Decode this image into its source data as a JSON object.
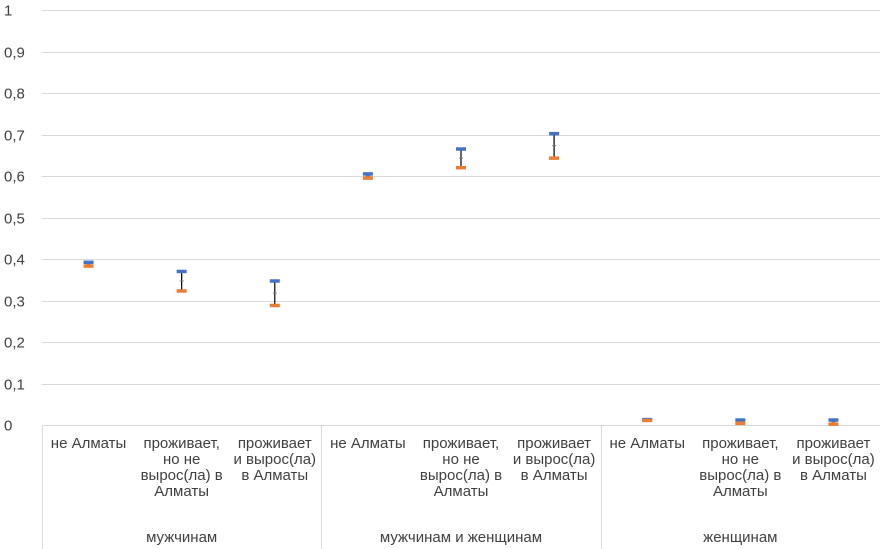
{
  "chart_data": {
    "type": "scatter",
    "style": "high-low-range",
    "title": "",
    "xlabel": "",
    "ylabel": "",
    "ylim": [
      0,
      1
    ],
    "y_ticks": [
      "0",
      "0,1",
      "0,2",
      "0,3",
      "0,4",
      "0,5",
      "0,6",
      "0,7",
      "0,8",
      "0,9",
      "1"
    ],
    "grid": true,
    "legend": "none",
    "groups": [
      {
        "label": "мужчинам",
        "categories": [
          {
            "label_lines": [
              "не Алматы"
            ],
            "high": 0.392,
            "low": 0.383,
            "mid": 0.387
          },
          {
            "label_lines": [
              "проживает,",
              "но не",
              "вырос(ла) в",
              "Алматы"
            ],
            "high": 0.37,
            "low": 0.323,
            "mid": 0.347
          },
          {
            "label_lines": [
              "проживает",
              "и вырос(ла)",
              "в Алматы"
            ],
            "high": 0.347,
            "low": 0.288,
            "mid": 0.318
          }
        ]
      },
      {
        "label": "мужчинам и женщинам",
        "categories": [
          {
            "label_lines": [
              "не Алматы"
            ],
            "high": 0.605,
            "low": 0.595,
            "mid": 0.6
          },
          {
            "label_lines": [
              "проживает,",
              "но не",
              "вырос(ла) в",
              "Алматы"
            ],
            "high": 0.665,
            "low": 0.62,
            "mid": 0.643
          },
          {
            "label_lines": [
              "проживает",
              "и вырос(ла)",
              "в Алматы"
            ],
            "high": 0.702,
            "low": 0.643,
            "mid": 0.673
          }
        ]
      },
      {
        "label": "женщинам",
        "categories": [
          {
            "label_lines": [
              "не Алматы"
            ],
            "high": 0.013,
            "low": 0.011,
            "mid": 0.012
          },
          {
            "label_lines": [
              "проживает,",
              "но не",
              "вырос(ла) в",
              "Алматы"
            ],
            "high": 0.012,
            "low": 0.004,
            "mid": 0.008
          },
          {
            "label_lines": [
              "проживает",
              "и вырос(ла)",
              "в Алматы"
            ],
            "high": 0.012,
            "low": 0.002,
            "mid": 0.007
          }
        ]
      }
    ],
    "colors": {
      "high": "#4472c4",
      "low": "#ed7d31",
      "range_line": "#000000",
      "grid": "#d9d9d9",
      "text": "#404040"
    }
  }
}
